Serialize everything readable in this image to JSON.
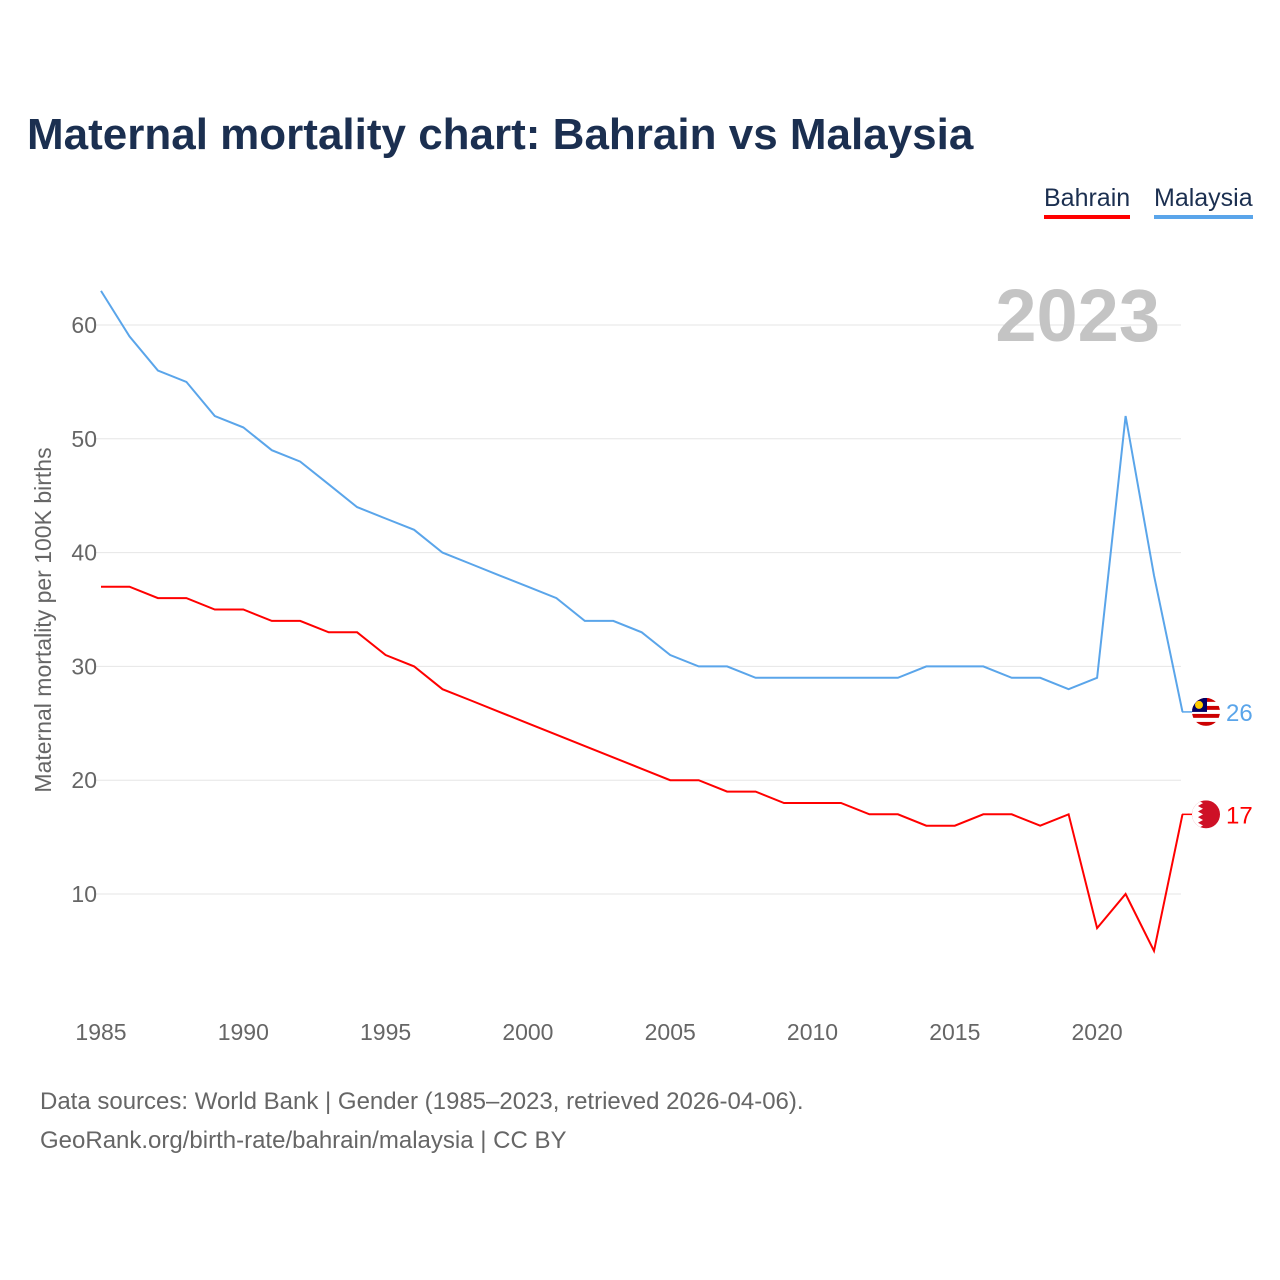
{
  "chart_data": {
    "type": "line",
    "title": "Maternal mortality chart: Bahrain vs Malaysia",
    "ylabel": "Maternal mortality per 100K births",
    "xlabel": "",
    "year_label": "2023",
    "ylim": [
      0,
      65
    ],
    "xlim": [
      1985,
      2023
    ],
    "yticks": [
      10,
      20,
      30,
      40,
      50,
      60
    ],
    "xticks": [
      1985,
      1990,
      1995,
      2000,
      2005,
      2010,
      2015,
      2020
    ],
    "grid": true,
    "legend_position": "top-right",
    "x": [
      1985,
      1986,
      1987,
      1988,
      1989,
      1990,
      1991,
      1992,
      1993,
      1994,
      1995,
      1996,
      1997,
      1998,
      1999,
      2000,
      2001,
      2002,
      2003,
      2004,
      2005,
      2006,
      2007,
      2008,
      2009,
      2010,
      2011,
      2012,
      2013,
      2014,
      2015,
      2016,
      2017,
      2018,
      2019,
      2020,
      2021,
      2022,
      2023
    ],
    "series": [
      {
        "name": "Bahrain",
        "color": "#ff0000",
        "end_label": "17",
        "values": [
          37,
          37,
          36,
          36,
          35,
          35,
          34,
          34,
          33,
          33,
          31,
          30,
          28,
          27,
          26,
          25,
          24,
          23,
          22,
          21,
          20,
          20,
          19,
          19,
          18,
          18,
          18,
          17,
          17,
          16,
          16,
          17,
          17,
          16,
          17,
          7,
          10,
          5,
          17
        ]
      },
      {
        "name": "Malaysia",
        "color": "#5aa5ea",
        "end_label": "26",
        "values": [
          63,
          59,
          56,
          55,
          52,
          51,
          49,
          48,
          46,
          44,
          43,
          42,
          40,
          39,
          38,
          37,
          36,
          34,
          34,
          33,
          31,
          30,
          30,
          29,
          29,
          29,
          29,
          29,
          29,
          30,
          30,
          30,
          29,
          29,
          28,
          29,
          52,
          38,
          26
        ]
      }
    ]
  },
  "footer": {
    "source": "Data sources: World Bank | Gender (1985–2023, retrieved 2026-04-06).",
    "credit": "GeoRank.org/birth-rate/bahrain/malaysia | CC BY"
  }
}
